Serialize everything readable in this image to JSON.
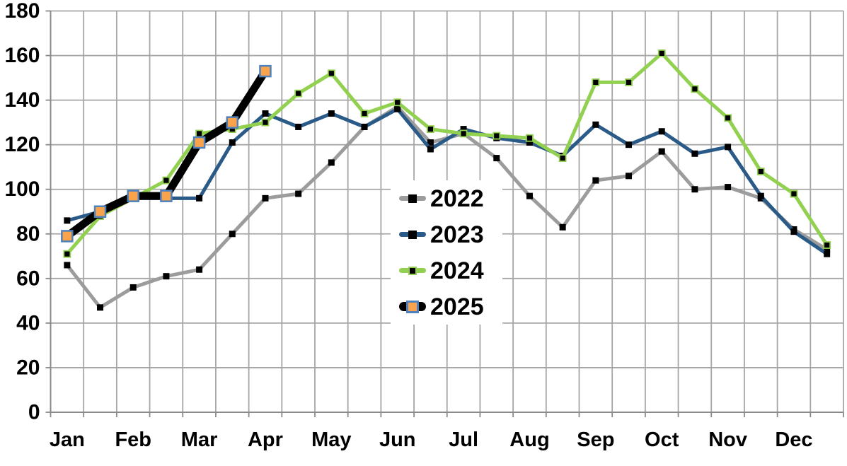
{
  "chart_data": {
    "type": "line",
    "title": "",
    "x_axis": {
      "months": [
        "Jan",
        "Feb",
        "Mar",
        "Apr",
        "May",
        "Jun",
        "Jul",
        "Aug",
        "Sep",
        "Oct",
        "Nov",
        "Dec"
      ],
      "points_per_month": 2
    },
    "y_axis": {
      "min": 0,
      "max": 180,
      "step": 20,
      "tick_labels": [
        "0",
        "20",
        "40",
        "60",
        "80",
        "100",
        "120",
        "140",
        "160",
        "180"
      ]
    },
    "grid": true,
    "legend": {
      "position": "inside-center",
      "items": [
        "2022",
        "2023",
        "2024",
        "2025"
      ]
    },
    "colors": {
      "grid": "#a6a6a6",
      "axis": "#8a8a8a",
      "text": "#000000",
      "background": "#ffffff",
      "marker_black": "#000000",
      "marker_orange_fill": "#f9a34c",
      "marker_orange_border": "#4f81bd"
    },
    "series": [
      {
        "name": "2022",
        "color": "#9c9c9c",
        "line_width": 5,
        "marker": "black-square",
        "values": [
          66,
          47,
          56,
          61,
          64,
          80,
          96,
          98,
          112,
          128,
          137,
          121,
          125,
          114,
          97,
          83,
          104,
          106,
          117,
          100,
          101,
          96,
          82,
          73
        ]
      },
      {
        "name": "2023",
        "color": "#2a5a87",
        "line_width": 5,
        "marker": "black-square",
        "values": [
          86,
          90,
          96,
          96,
          96,
          121,
          134,
          128,
          134,
          128,
          136,
          118,
          127,
          123,
          121,
          115,
          129,
          120,
          126,
          116,
          119,
          97,
          81,
          71
        ]
      },
      {
        "name": "2024",
        "color": "#92d050",
        "line_width": 5,
        "marker": "black-square-green-border",
        "values": [
          71,
          88,
          96,
          104,
          125,
          127,
          130,
          143,
          152,
          134,
          139,
          127,
          125,
          124,
          123,
          114,
          148,
          148,
          161,
          145,
          132,
          108,
          98,
          75
        ]
      },
      {
        "name": "2025",
        "color": "#000000",
        "line_width": 11,
        "marker": "orange-square",
        "marker_fill": "#f9a34c",
        "marker_border": "#4f81bd",
        "values": [
          79,
          90,
          97,
          97,
          121,
          130,
          153
        ]
      }
    ]
  }
}
